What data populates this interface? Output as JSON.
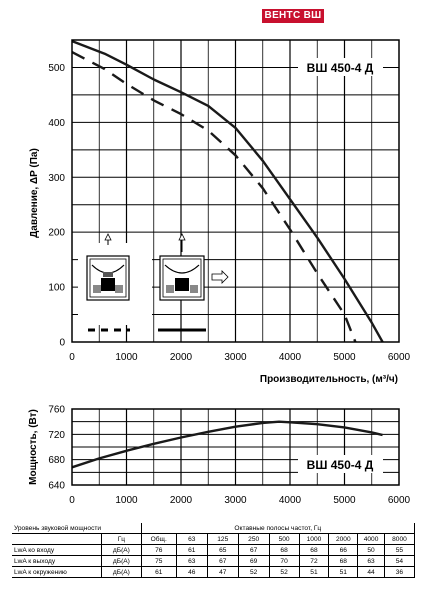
{
  "brand": {
    "badge": "ВЕНТС ВШ"
  },
  "charts": {
    "pressure": {
      "model_label": "ВШ  450-4 Д",
      "ylabel": "Давление, ΔP (Па)",
      "xlabel": "Производительность, (м³/ч)",
      "yticks": [
        "0",
        "100",
        "200",
        "300",
        "400",
        "500"
      ],
      "xticks": [
        "0",
        "1000",
        "2000",
        "3000",
        "4000",
        "5000",
        "6000"
      ]
    },
    "power": {
      "model_label": "ВШ  450-4 Д",
      "ylabel": "Мощность, (Вт)",
      "yticks": [
        "640",
        "680",
        "720",
        "760"
      ],
      "xticks": [
        "0",
        "1000",
        "2000",
        "3000",
        "4000",
        "5000",
        "6000"
      ]
    }
  },
  "chart_data": [
    {
      "type": "line",
      "title": "",
      "xlabel": "Производительность, (м³/ч)",
      "ylabel": "Давление, ΔP (Па)",
      "xlim": [
        0,
        6000
      ],
      "ylim": [
        0,
        550
      ],
      "grid": true,
      "series": [
        {
          "line_style": "solid",
          "x": [
            0,
            600,
            1000,
            1500,
            2000,
            2500,
            3000,
            3500,
            4000,
            4500,
            5000,
            5500,
            5700
          ],
          "y": [
            548,
            525,
            505,
            478,
            455,
            430,
            390,
            330,
            260,
            190,
            115,
            35,
            0
          ]
        },
        {
          "line_style": "dashed",
          "x": [
            0,
            600,
            1000,
            1500,
            2000,
            2500,
            3000,
            3500,
            4000,
            4500,
            5000,
            5200
          ],
          "y": [
            528,
            497,
            470,
            440,
            415,
            385,
            340,
            280,
            205,
            125,
            50,
            0
          ]
        }
      ]
    },
    {
      "type": "line",
      "title": "",
      "xlabel": "",
      "ylabel": "Мощность, (Вт)",
      "xlim": [
        0,
        6000
      ],
      "ylim": [
        640,
        760
      ],
      "grid": true,
      "series": [
        {
          "line_style": "solid",
          "x": [
            0,
            500,
            1000,
            1500,
            2000,
            2500,
            3000,
            3500,
            3800,
            4000,
            4500,
            5000,
            5500,
            5700
          ],
          "y": [
            668,
            682,
            694,
            705,
            715,
            724,
            732,
            738,
            740,
            739,
            736,
            731,
            723,
            719
          ]
        }
      ]
    }
  ],
  "noise": {
    "title_label": "Уровень звуковой мощности",
    "band_header": "Октавные полосы частот, Гц",
    "hz_label": "Гц",
    "columns": [
      "Общ.",
      "63",
      "125",
      "250",
      "500",
      "1000",
      "2000",
      "4000",
      "8000"
    ],
    "rows": [
      {
        "label": "LwA ко входу",
        "unit": "дБ(А)",
        "values": [
          "76",
          "61",
          "65",
          "67",
          "68",
          "68",
          "66",
          "50",
          "55"
        ]
      },
      {
        "label": "LwA к выходу",
        "unit": "дБ(А)",
        "values": [
          "75",
          "63",
          "67",
          "69",
          "70",
          "72",
          "68",
          "63",
          "54"
        ]
      },
      {
        "label": "LwA к окружению",
        "unit": "дБ(А)",
        "values": [
          "61",
          "46",
          "47",
          "52",
          "52",
          "51",
          "51",
          "44",
          "36"
        ]
      }
    ]
  }
}
